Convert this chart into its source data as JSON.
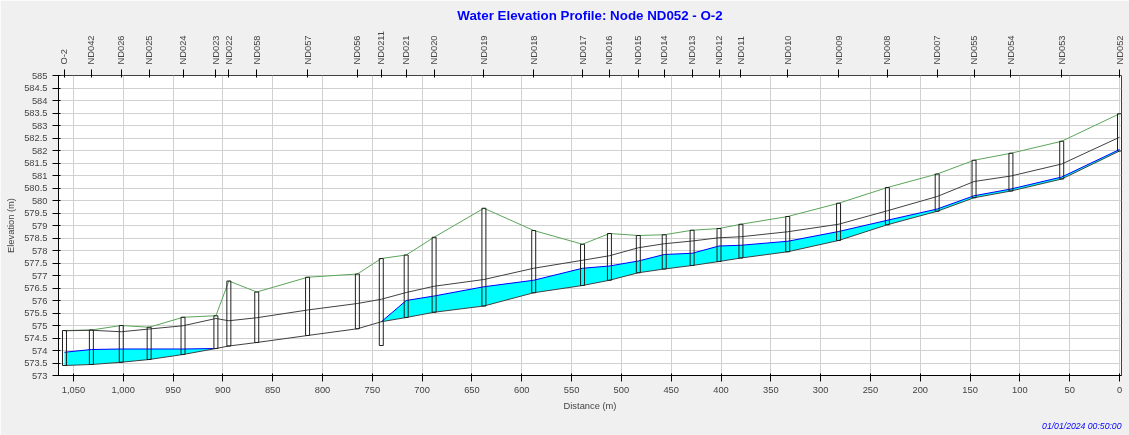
{
  "chart_data": {
    "type": "line",
    "title": "Water Elevation Profile: Node ND052 - O-2",
    "xlabel": "Distance (m)",
    "ylabel": "Elevation (m)",
    "annotations": [
      "01/01/2024 00:50:00",
      {
        "text": "O-2",
        "x": 1059
      },
      {
        "text": "ND042",
        "x": 1032
      },
      {
        "text": "ND026",
        "x": 1002
      },
      {
        "text": "ND025",
        "x": 974
      },
      {
        "text": "ND024",
        "x": 940
      },
      {
        "text": "ND023",
        "x": 907
      },
      {
        "text": "ND022",
        "x": 894
      },
      {
        "text": "ND058",
        "x": 866
      },
      {
        "text": "ND057",
        "x": 815
      },
      {
        "text": "ND056",
        "x": 765
      },
      {
        "text": "ND0211",
        "x": 741
      },
      {
        "text": "ND021",
        "x": 716
      },
      {
        "text": "ND020",
        "x": 688
      },
      {
        "text": "ND019",
        "x": 638
      },
      {
        "text": "ND018",
        "x": 588
      },
      {
        "text": "ND017",
        "x": 539
      },
      {
        "text": "ND016",
        "x": 512
      },
      {
        "text": "ND015",
        "x": 483
      },
      {
        "text": "ND014",
        "x": 457
      },
      {
        "text": "ND013",
        "x": 429
      },
      {
        "text": "ND012",
        "x": 402
      },
      {
        "text": "ND011",
        "x": 380
      },
      {
        "text": "ND010",
        "x": 333
      },
      {
        "text": "ND009",
        "x": 282
      },
      {
        "text": "ND008",
        "x": 233
      },
      {
        "text": "ND007",
        "x": 183
      },
      {
        "text": "ND055",
        "x": 146
      },
      {
        "text": "ND054",
        "x": 109
      },
      {
        "text": "ND053",
        "x": 58
      },
      {
        "text": "ND052",
        "x": 0
      }
    ],
    "x": [
      1059,
      1032,
      1002,
      974,
      940,
      907,
      894,
      866,
      815,
      765,
      741,
      716,
      688,
      638,
      588,
      539,
      512,
      483,
      457,
      429,
      402,
      380,
      333,
      282,
      233,
      183,
      146,
      109,
      58,
      0
    ],
    "xlim": [
      1065,
      -2
    ],
    "xticks": [
      {
        "value": 1050,
        "label": "1,050"
      },
      {
        "value": 1000,
        "label": "1,000"
      },
      950,
      900,
      850,
      800,
      750,
      700,
      650,
      600,
      550,
      500,
      450,
      400,
      350,
      300,
      250,
      200,
      150,
      100,
      50,
      0
    ],
    "ylim": [
      573,
      585
    ],
    "yticks": [
      573,
      573.5,
      574,
      574.5,
      575,
      575.5,
      576,
      576.5,
      577,
      577.5,
      578,
      578.5,
      579,
      579.5,
      580,
      580.5,
      581,
      581.5,
      582,
      582.5,
      583,
      583.5,
      584,
      584.5,
      585
    ],
    "grid": true,
    "series": [
      {
        "type": "bar",
        "color": "#202020",
        "base": [
          573.4,
          573.44,
          573.53,
          573.64,
          573.84,
          574.08,
          574.18,
          574.32,
          574.6,
          574.87,
          574.2,
          575.32,
          575.53,
          575.78,
          576.31,
          576.6,
          576.81,
          577.11,
          577.26,
          577.4,
          577.56,
          577.7,
          577.95,
          578.4,
          579.03,
          579.57,
          580.11,
          580.38,
          580.86,
          581.98
        ],
        "values": [
          1.4,
          1.38,
          1.47,
          1.29,
          1.49,
          1.31,
          2.6,
          2.02,
          2.33,
          2.19,
          3.48,
          2.5,
          3.0,
          3.91,
          2.49,
          1.65,
          1.87,
          1.49,
          1.37,
          1.41,
          1.32,
          1.35,
          1.41,
          1.49,
          1.49,
          1.49,
          1.5,
          1.51,
          1.51,
          1.49
        ]
      },
      {
        "color": "#0000ff",
        "values": [
          573.93,
          574.04,
          574.06,
          574.06,
          574.06,
          574.08,
          null,
          null,
          null,
          null,
          575.15,
          576.0,
          576.18,
          576.55,
          576.81,
          577.29,
          577.38,
          577.58,
          577.84,
          577.89,
          578.18,
          578.21,
          578.37,
          578.76,
          579.21,
          579.66,
          580.19,
          580.46,
          580.94,
          582.04
        ],
        "lower": [
          573.4,
          573.44,
          573.53,
          573.64,
          573.84,
          574.08,
          null,
          null,
          null,
          null,
          575.15,
          575.32,
          575.53,
          575.78,
          576.31,
          576.6,
          576.81,
          577.11,
          577.26,
          577.4,
          577.56,
          577.7,
          577.95,
          578.4,
          579.03,
          579.57,
          580.11,
          580.38,
          580.86,
          581.98
        ],
        "upper": [
          573.93,
          574.04,
          574.06,
          574.06,
          574.06,
          574.08,
          null,
          null,
          null,
          null,
          575.15,
          576.0,
          576.18,
          576.55,
          576.81,
          577.29,
          577.38,
          577.58,
          577.84,
          577.89,
          578.18,
          578.21,
          578.37,
          578.76,
          579.21,
          579.66,
          580.19,
          580.46,
          580.94,
          582.04
        ]
      },
      {
        "color": "#5aa55a",
        "values": [
          574.8,
          574.82,
          575.0,
          574.93,
          575.33,
          575.39,
          576.78,
          576.34,
          576.93,
          577.06,
          577.68,
          577.82,
          578.53,
          579.69,
          578.8,
          578.25,
          578.68,
          578.6,
          578.63,
          578.81,
          578.88,
          579.05,
          579.36,
          579.89,
          580.52,
          581.06,
          581.61,
          581.89,
          582.37,
          583.47
        ]
      },
      {
        "color": "#404040",
        "values": [
          574.79,
          574.81,
          574.75,
          574.86,
          574.99,
          575.28,
          575.19,
          575.31,
          575.62,
          575.88,
          576.05,
          576.32,
          576.57,
          576.84,
          577.29,
          577.61,
          577.79,
          578.11,
          578.27,
          578.38,
          578.51,
          578.55,
          578.75,
          579.05,
          579.59,
          580.16,
          580.76,
          580.98,
          581.46,
          582.53
        ]
      },
      {
        "color": "#404040",
        "values": [
          573.4,
          573.44,
          573.53,
          573.64,
          573.84,
          574.08,
          574.18,
          574.32,
          574.6,
          574.87,
          575.15,
          575.32,
          575.53,
          575.78,
          576.31,
          576.6,
          576.81,
          577.11,
          577.26,
          577.4,
          577.56,
          577.7,
          577.95,
          578.4,
          579.03,
          579.57,
          580.11,
          580.38,
          580.86,
          581.98
        ]
      }
    ]
  }
}
